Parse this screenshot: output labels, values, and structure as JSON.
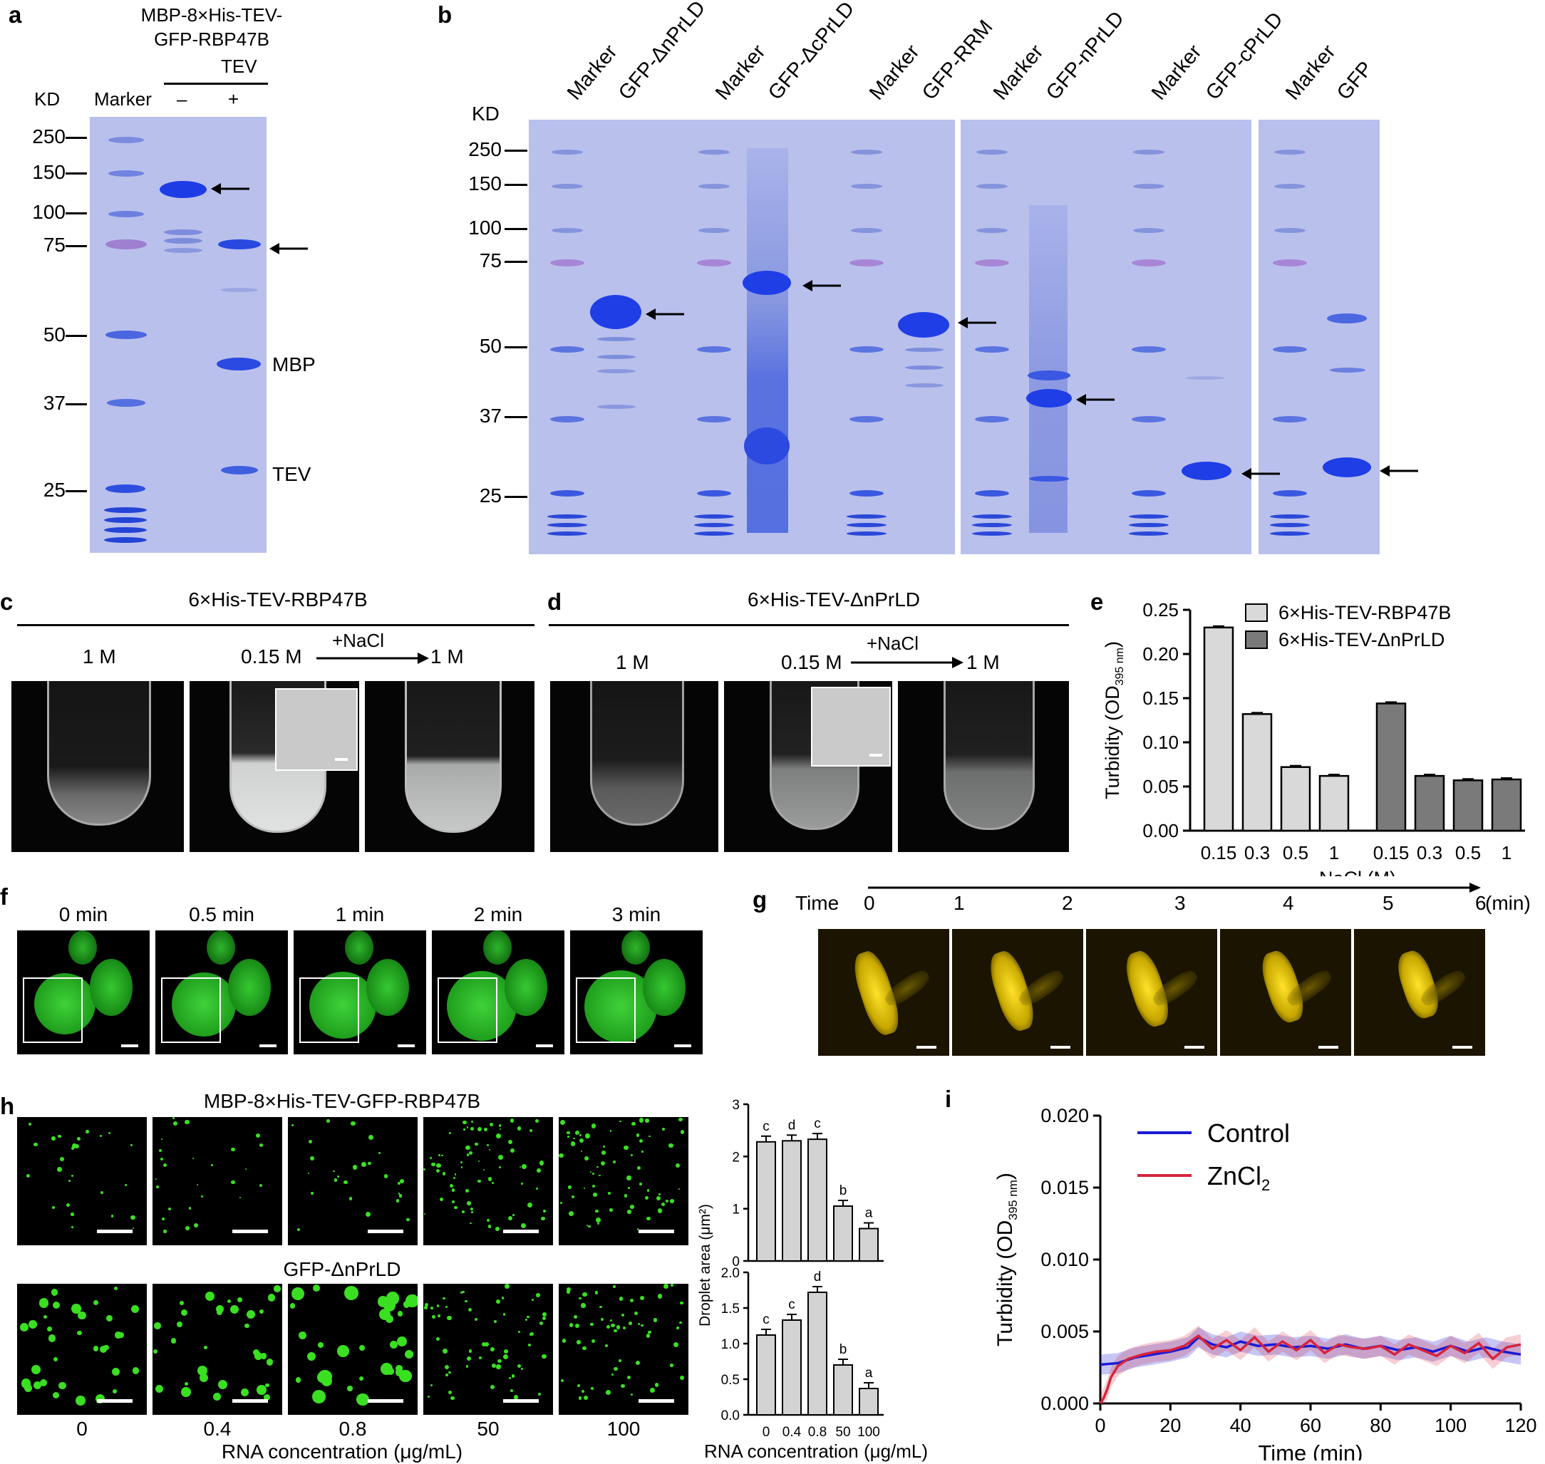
{
  "panel_a": {
    "label": "a",
    "construct_line1": "MBP-8×His-TEV-",
    "construct_line2": "GFP-RBP47B",
    "tev": "TEV",
    "kd": "KD",
    "marker": "Marker",
    "minus": "–",
    "plus": "+",
    "mw": [
      "250",
      "150",
      "100",
      "75",
      "50",
      "37",
      "25"
    ],
    "mbp": "MBP",
    "tev_band": "TEV"
  },
  "panel_b": {
    "label": "b",
    "kd": "KD",
    "mw": [
      "250",
      "150",
      "100",
      "75",
      "50",
      "37",
      "25"
    ],
    "lanes": [
      "Marker",
      "GFP-ΔnPrLD",
      "Marker",
      "GFP-ΔcPrLD",
      "Marker",
      "GFP-RRM",
      "Marker",
      "GFP-nPrLD",
      "Marker",
      "GFP-cPrLD",
      "Marker",
      "GFP"
    ]
  },
  "panel_c": {
    "label": "c",
    "title": "6×His-TEV-RBP47B",
    "c1": "1 M",
    "c2": "0.15 M",
    "nacl": "+NaCl",
    "c3": "1 M"
  },
  "panel_d": {
    "label": "d",
    "title": "6×His-TEV-ΔnPrLD",
    "c1": "1 M",
    "c2": "0.15 M",
    "nacl": "+NaCl",
    "c3": "1 M"
  },
  "panel_f": {
    "label": "f",
    "times": [
      "0 min",
      "0.5 min",
      "1 min",
      "2 min",
      "3 min"
    ]
  },
  "panel_g": {
    "label": "g",
    "time_label": "Time",
    "ticks": [
      "0",
      "1",
      "2",
      "3",
      "4",
      "5",
      "6"
    ],
    "unit": "(min)"
  },
  "panel_h": {
    "label": "h",
    "row1_title": "MBP-8×His-TEV-GFP-RBP47B",
    "row2_title": "GFP-ΔnPrLD",
    "conc": [
      "0",
      "0.4",
      "0.8",
      "50",
      "100"
    ],
    "xlabel": "RNA concentration (μg/mL)"
  },
  "panel_i": {
    "label": "i"
  },
  "chart_data": [
    {
      "id": "e",
      "type": "bar",
      "ylabel": "Turbidity (OD395 nm)",
      "xlabel": "NaCl (M)",
      "ylim": [
        0,
        0.25
      ],
      "yticks": [
        "0.00",
        "0.05",
        "0.10",
        "0.15",
        "0.20",
        "0.25"
      ],
      "categories": [
        "0.15",
        "0.3",
        "0.5",
        "1"
      ],
      "legend": "top-right",
      "series": [
        {
          "name": "6×His-TEV-RBP47B",
          "values": [
            0.23,
            0.132,
            0.072,
            0.062
          ],
          "color": "#d9d9d9"
        },
        {
          "name": "6×His-TEV-ΔnPrLD",
          "values": [
            0.144,
            0.062,
            0.057,
            0.058
          ],
          "color": "#7a7a7a"
        }
      ]
    },
    {
      "id": "h-top",
      "type": "bar",
      "ylabel": "Droplet area (μm²)",
      "ylim": [
        0,
        3
      ],
      "yticks": [
        "0",
        "1",
        "2",
        "3"
      ],
      "categories": [
        "0",
        "0.4",
        "0.8",
        "50",
        "100"
      ],
      "values": [
        2.28,
        2.3,
        2.33,
        1.05,
        0.62
      ],
      "letters": [
        "c",
        "d",
        "c",
        "b",
        "a"
      ]
    },
    {
      "id": "h-bottom",
      "type": "bar",
      "ylim": [
        0,
        2.0
      ],
      "yticks": [
        "0.0",
        "0.5",
        "1.0",
        "1.5",
        "2.0"
      ],
      "categories": [
        "0",
        "0.4",
        "0.8",
        "50",
        "100"
      ],
      "values": [
        1.12,
        1.33,
        1.72,
        0.7,
        0.37
      ],
      "letters": [
        "c",
        "c",
        "d",
        "b",
        "a"
      ],
      "xlabel": "RNA concentration (μg/mL)"
    },
    {
      "id": "i",
      "type": "line",
      "ylabel": "Turbidity (OD395 nm)",
      "xlabel": "Time (min)",
      "xlim": [
        0,
        120
      ],
      "ylim": [
        0,
        0.02
      ],
      "xticks": [
        "0",
        "20",
        "40",
        "60",
        "80",
        "100",
        "120"
      ],
      "yticks": [
        "0.000",
        "0.005",
        "0.010",
        "0.015",
        "0.020"
      ],
      "legend": "top-left",
      "series": [
        {
          "name": "Control",
          "color": "#1a1ad6",
          "x": [
            0,
            5,
            10,
            15,
            20,
            25,
            28,
            32,
            36,
            40,
            45,
            50,
            55,
            60,
            65,
            70,
            75,
            80,
            85,
            90,
            95,
            100,
            105,
            110,
            115,
            120
          ],
          "y": [
            0.0027,
            0.0028,
            0.0032,
            0.0034,
            0.0036,
            0.0039,
            0.0046,
            0.0041,
            0.0039,
            0.0043,
            0.004,
            0.0041,
            0.0039,
            0.004,
            0.0038,
            0.0041,
            0.0038,
            0.004,
            0.0037,
            0.0039,
            0.0036,
            0.004,
            0.0036,
            0.0039,
            0.0036,
            0.0034
          ]
        },
        {
          "name": "ZnCl2",
          "color": "#d6243c",
          "x": [
            0,
            1,
            2,
            3,
            5,
            8,
            12,
            16,
            20,
            24,
            28,
            32,
            36,
            40,
            44,
            48,
            52,
            56,
            60,
            64,
            68,
            72,
            76,
            80,
            84,
            88,
            92,
            96,
            100,
            104,
            108,
            112,
            116,
            120
          ],
          "y": [
            0.0,
            0.0004,
            0.001,
            0.0018,
            0.0026,
            0.0031,
            0.0034,
            0.0036,
            0.0037,
            0.004,
            0.0047,
            0.0038,
            0.0044,
            0.0037,
            0.0046,
            0.0036,
            0.0043,
            0.0037,
            0.0044,
            0.0035,
            0.0041,
            0.0039,
            0.0038,
            0.004,
            0.0034,
            0.0041,
            0.0037,
            0.0033,
            0.004,
            0.0035,
            0.0042,
            0.0031,
            0.0039,
            0.0041
          ]
        }
      ]
    }
  ]
}
